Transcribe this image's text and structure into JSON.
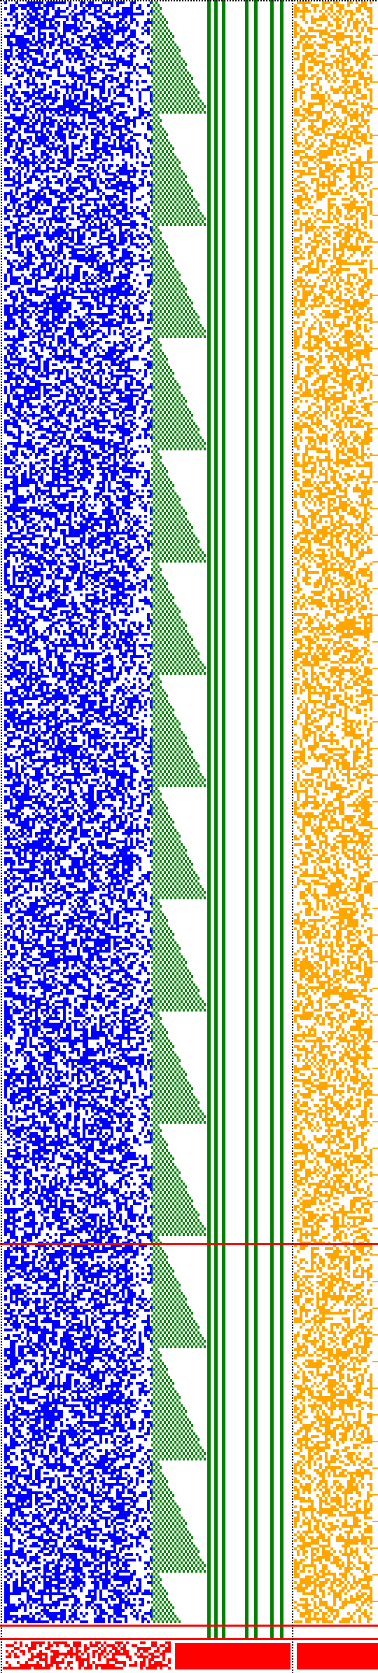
{
  "title": "",
  "colors": {
    "background": "#ffffff",
    "bits": "#0000ff",
    "carries": "#008000",
    "parity": "#ffa500",
    "markers": "#ff0000",
    "dotted_border": "#000000"
  },
  "panels": [
    "bit-field",
    "carry-staircase",
    "parity-field"
  ]
}
